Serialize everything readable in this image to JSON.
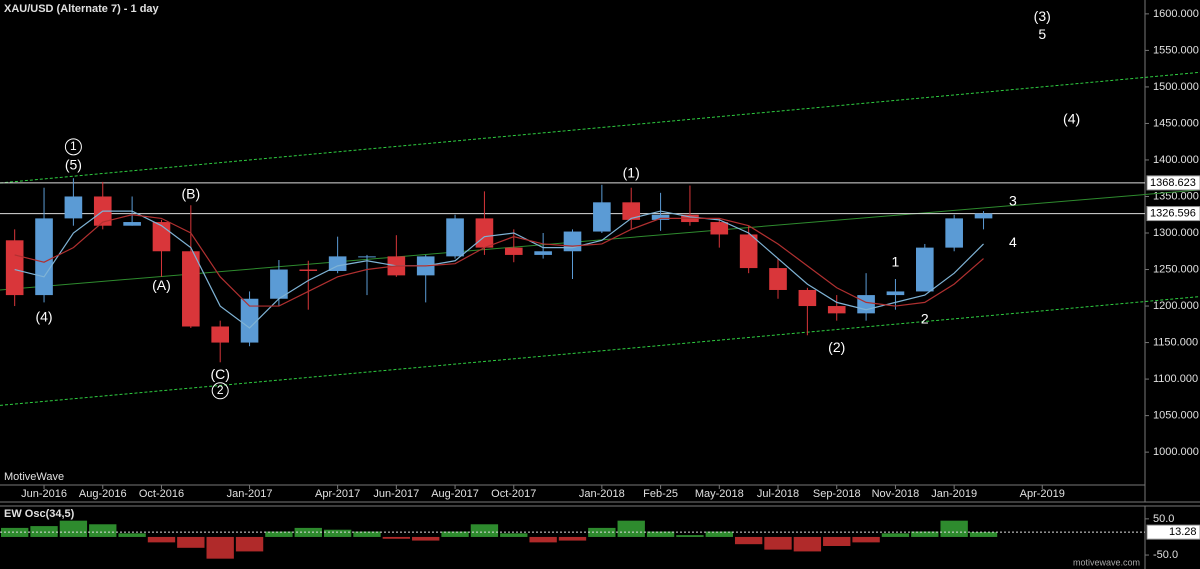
{
  "chart_data": [
    {
      "type": "candlestick",
      "title": "XAU/USD (Alternate 7) - 1 day",
      "watermark": "MotiveWave",
      "categories": [
        null,
        "Jun-2016",
        null,
        "Aug-2016",
        null,
        "Oct-2016",
        null,
        null,
        "Jan-2017",
        null,
        null,
        "Apr-2017",
        null,
        "Jun-2017",
        null,
        "Aug-2017",
        null,
        "Oct-2017",
        null,
        null,
        "Jan-2018",
        null,
        "Feb-25",
        null,
        "May-2018",
        null,
        "Jul-2018",
        null,
        "Sep-2018",
        null,
        "Nov-2018",
        null,
        "Jan-2019",
        null,
        null,
        "Apr-2019",
        null,
        null,
        null
      ],
      "open": [
        1290,
        1215,
        1320,
        1350,
        1310,
        1315,
        1275,
        1172,
        1150,
        1210,
        1250,
        1248,
        1268,
        1268,
        1242,
        1268,
        1320,
        1280,
        1270,
        1275,
        1302,
        1342,
        1318,
        1325,
        1315,
        1298,
        1252,
        1222,
        1200,
        1190,
        1215,
        1220,
        1280,
        1320,
        null,
        null,
        null,
        null,
        null
      ],
      "high": [
        1305,
        1362,
        1375,
        1370,
        1350,
        1318,
        1338,
        1180,
        1220,
        1263,
        1262,
        1295,
        1270,
        1297,
        1270,
        1325,
        1357,
        1305,
        1300,
        1305,
        1366,
        1362,
        1355,
        1365,
        1320,
        1310,
        1265,
        1225,
        1215,
        1245,
        1237,
        1285,
        1325,
        1330,
        null,
        null,
        null,
        null,
        null
      ],
      "low": [
        1200,
        1205,
        1310,
        1305,
        1310,
        1240,
        1170,
        1123,
        1145,
        1200,
        1195,
        1245,
        1215,
        1240,
        1205,
        1265,
        1270,
        1260,
        1265,
        1237,
        1300,
        1305,
        1303,
        1310,
        1280,
        1245,
        1210,
        1160,
        1180,
        1180,
        1195,
        1220,
        1275,
        1305,
        null,
        null,
        null,
        null,
        null
      ],
      "close": [
        1215,
        1320,
        1350,
        1310,
        1315,
        1275,
        1172,
        1150,
        1210,
        1250,
        1248,
        1268,
        1268,
        1242,
        1268,
        1320,
        1280,
        1270,
        1275,
        1302,
        1342,
        1318,
        1325,
        1315,
        1298,
        1252,
        1222,
        1200,
        1190,
        1215,
        1220,
        1280,
        1320,
        1326.596,
        null,
        null,
        null,
        null,
        null
      ],
      "up_color": "#5b9bd5",
      "down_color": "#d9363a",
      "overlays": [
        {
          "color": "#7fb3d5",
          "values": [
            1250,
            1240,
            1300,
            1330,
            1330,
            1310,
            1280,
            1200,
            1170,
            1210,
            1235,
            1255,
            1262,
            1255,
            1255,
            1262,
            1295,
            1300,
            1280,
            1280,
            1290,
            1320,
            1330,
            1322,
            1318,
            1300,
            1265,
            1230,
            1205,
            1195,
            1205,
            1215,
            1245,
            1285,
            null,
            null,
            null,
            null,
            null
          ]
        },
        {
          "color": "#b03030",
          "values": [
            1270,
            1260,
            1280,
            1315,
            1325,
            1320,
            1300,
            1240,
            1200,
            1200,
            1220,
            1240,
            1250,
            1255,
            1255,
            1258,
            1280,
            1295,
            1285,
            1282,
            1285,
            1305,
            1320,
            1320,
            1320,
            1310,
            1285,
            1255,
            1225,
            1205,
            1200,
            1205,
            1230,
            1265,
            null,
            null,
            null,
            null,
            null
          ]
        }
      ],
      "trendlines": [
        {
          "color": "#2ecc40",
          "dashed": true,
          "values": [
            1368.5,
            1520
          ]
        },
        {
          "color": "#2ecc40",
          "dashed": true,
          "values": [
            1064,
            1213
          ]
        },
        {
          "color": "#2e8b2e",
          "dashed": false,
          "values": [
            1222,
            1359
          ]
        }
      ],
      "price_levels": [
        1368.623,
        1326.596
      ],
      "annotations": [
        {
          "text": "1",
          "circled": true,
          "x": 2,
          "y": 1418
        },
        {
          "text": "(5)",
          "x": 2,
          "y": 1392
        },
        {
          "text": "(4)",
          "x": 1,
          "y": 1184
        },
        {
          "text": "(B)",
          "x": 6,
          "y": 1352
        },
        {
          "text": "(A)",
          "x": 5,
          "y": 1227
        },
        {
          "text": "(C)",
          "x": 7,
          "y": 1105
        },
        {
          "text": "2",
          "circled": true,
          "x": 7,
          "y": 1084
        },
        {
          "text": "(1)",
          "x": 21,
          "y": 1381
        },
        {
          "text": "(2)",
          "x": 28,
          "y": 1142
        },
        {
          "text": "1",
          "x": 30,
          "y": 1259
        },
        {
          "text": "2",
          "x": 31,
          "y": 1181
        },
        {
          "text": "3",
          "x": 34,
          "y": 1343
        },
        {
          "text": "4",
          "x": 34,
          "y": 1286
        },
        {
          "text": "(3)",
          "x": 35,
          "y": 1595
        },
        {
          "text": "5",
          "x": 35,
          "y": 1571
        },
        {
          "text": "(4)",
          "x": 36,
          "y": 1455
        }
      ],
      "ylim": [
        955,
        1619
      ],
      "yticks": [
        {
          "value": 1000,
          "label": "1000.000"
        },
        {
          "value": 1050,
          "label": "1050.000"
        },
        {
          "value": 1100,
          "label": "1100.000"
        },
        {
          "value": 1150,
          "label": "1150.000"
        },
        {
          "value": 1200,
          "label": "1200.000"
        },
        {
          "value": 1250,
          "label": "1250.000"
        },
        {
          "value": 1300,
          "label": "1300.000"
        },
        {
          "value": 1350,
          "label": "1350.000"
        },
        {
          "value": 1400,
          "label": "1400.000"
        },
        {
          "value": 1450,
          "label": "1450.000"
        },
        {
          "value": 1500,
          "label": "1500.000"
        },
        {
          "value": 1550,
          "label": "1550.000"
        },
        {
          "value": 1600,
          "label": "1600.000"
        }
      ]
    },
    {
      "type": "histogram-osc",
      "title": "EW Osc(34,5)",
      "watermark": "motivewave.com",
      "pos_color": "#2e8b2e",
      "neg_color": "#b02a2a",
      "values": [
        25,
        30,
        45,
        35,
        10,
        -15,
        -30,
        -60,
        -40,
        15,
        25,
        20,
        15,
        -5,
        -10,
        15,
        35,
        10,
        -15,
        -10,
        25,
        45,
        15,
        5,
        15,
        -20,
        -35,
        -40,
        -25,
        -15,
        10,
        15,
        45,
        13.28,
        null,
        null,
        null,
        null,
        null
      ],
      "ylim": [
        -72,
        80
      ],
      "yticks": [
        {
          "value": 50,
          "label": "50.0"
        },
        {
          "value": -50,
          "label": "-50.0"
        }
      ]
    }
  ]
}
